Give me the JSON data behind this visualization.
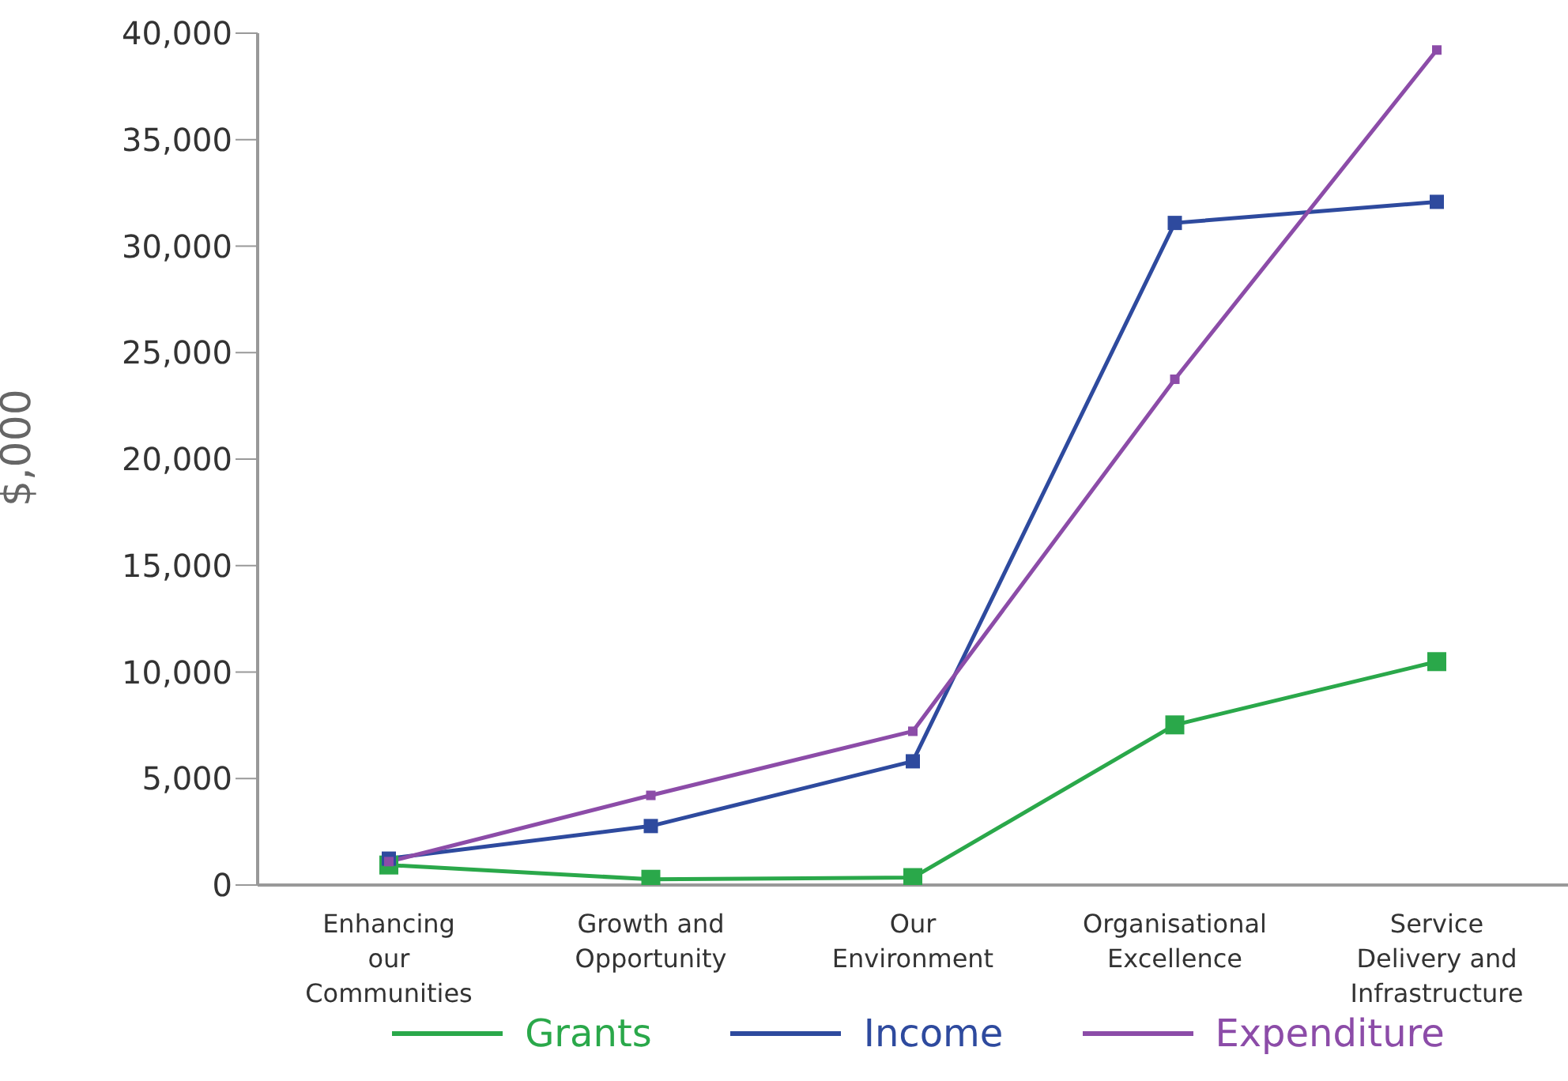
{
  "chart_data": {
    "type": "line",
    "ylabel": "$,000",
    "categories": [
      "Enhancing our Communities",
      "Growth and Opportunity",
      "Our Environment",
      "Organisational Excellence",
      "Service Delivery and Infrastructure"
    ],
    "series": [
      {
        "name": "Grants",
        "color": "#2aa84a",
        "values": [
          940,
          270,
          350,
          7520,
          10490
        ]
      },
      {
        "name": "Income",
        "color": "#2e4a9e",
        "values": [
          1240,
          2770,
          5810,
          31090,
          32080
        ]
      },
      {
        "name": "Expenditure",
        "color": "#8c4ca8",
        "values": [
          1100,
          4210,
          7220,
          23750,
          39210
        ]
      }
    ],
    "ylim": [
      0,
      40000
    ],
    "yticks": [
      0,
      {
        "value": 5000,
        "label": "5,000"
      },
      {
        "value": 10000,
        "label": "10,000"
      },
      {
        "value": 15000,
        "label": "15,000"
      },
      {
        "value": 20000,
        "label": "20,000"
      },
      {
        "value": 25000,
        "label": "25,000"
      },
      {
        "value": 30000,
        "label": "30,000"
      },
      {
        "value": 35000,
        "label": "35,000"
      },
      {
        "value": 40000,
        "label": "40,000"
      }
    ],
    "grid": false,
    "legend": "bottom",
    "marker": "square",
    "line_style": "solid"
  }
}
